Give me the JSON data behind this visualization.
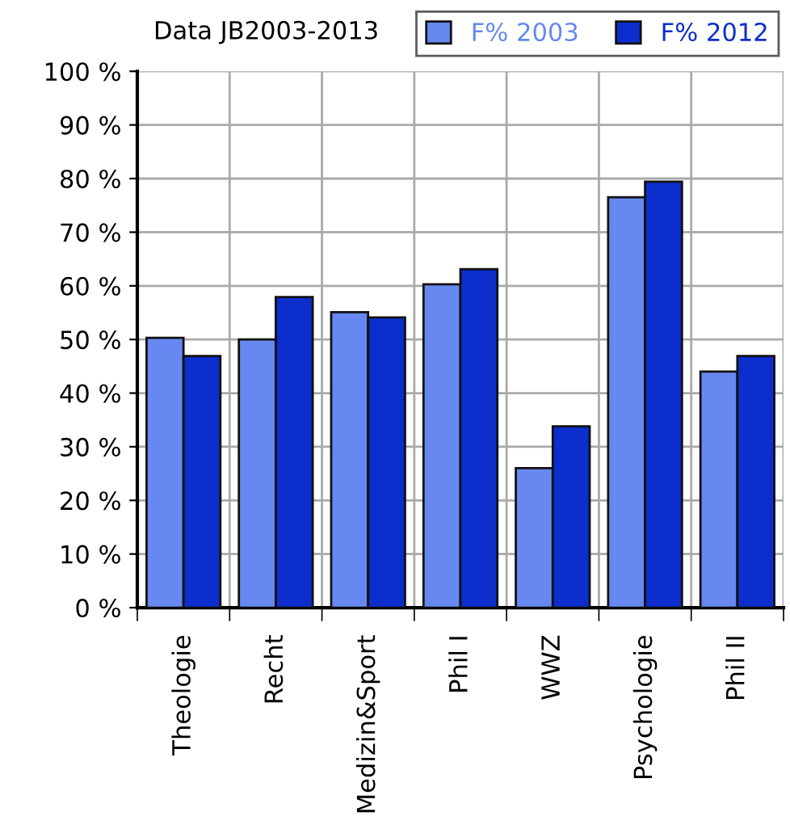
{
  "chart_data": {
    "type": "bar",
    "title": "Data JB2003-2013",
    "categories": [
      "Theologie",
      "Recht",
      "Medizin&Sport",
      "Phil I",
      "WWZ",
      "Psychologie",
      "Phil II"
    ],
    "series": [
      {
        "name": "F% 2003",
        "color": "#6688f0",
        "values": [
          50.3,
          50.0,
          55.1,
          60.3,
          26.0,
          76.5,
          44.0
        ]
      },
      {
        "name": "F% 2012",
        "color": "#0c2ecc",
        "values": [
          46.9,
          57.9,
          54.1,
          63.1,
          33.8,
          79.4,
          46.9
        ]
      }
    ],
    "ylim": [
      0,
      100
    ],
    "yticks": [
      {
        "value": 0,
        "label": "0 %"
      },
      {
        "value": 10,
        "label": "10 %"
      },
      {
        "value": 20,
        "label": "20 %"
      },
      {
        "value": 30,
        "label": "30 %"
      },
      {
        "value": 40,
        "label": "40 %"
      },
      {
        "value": 50,
        "label": "50 %"
      },
      {
        "value": 60,
        "label": "60 %"
      },
      {
        "value": 70,
        "label": "70 %"
      },
      {
        "value": 80,
        "label": "80 %"
      },
      {
        "value": 90,
        "label": "90 %"
      },
      {
        "value": 100,
        "label": "100 %"
      }
    ],
    "grid": true,
    "legend": "top right"
  }
}
